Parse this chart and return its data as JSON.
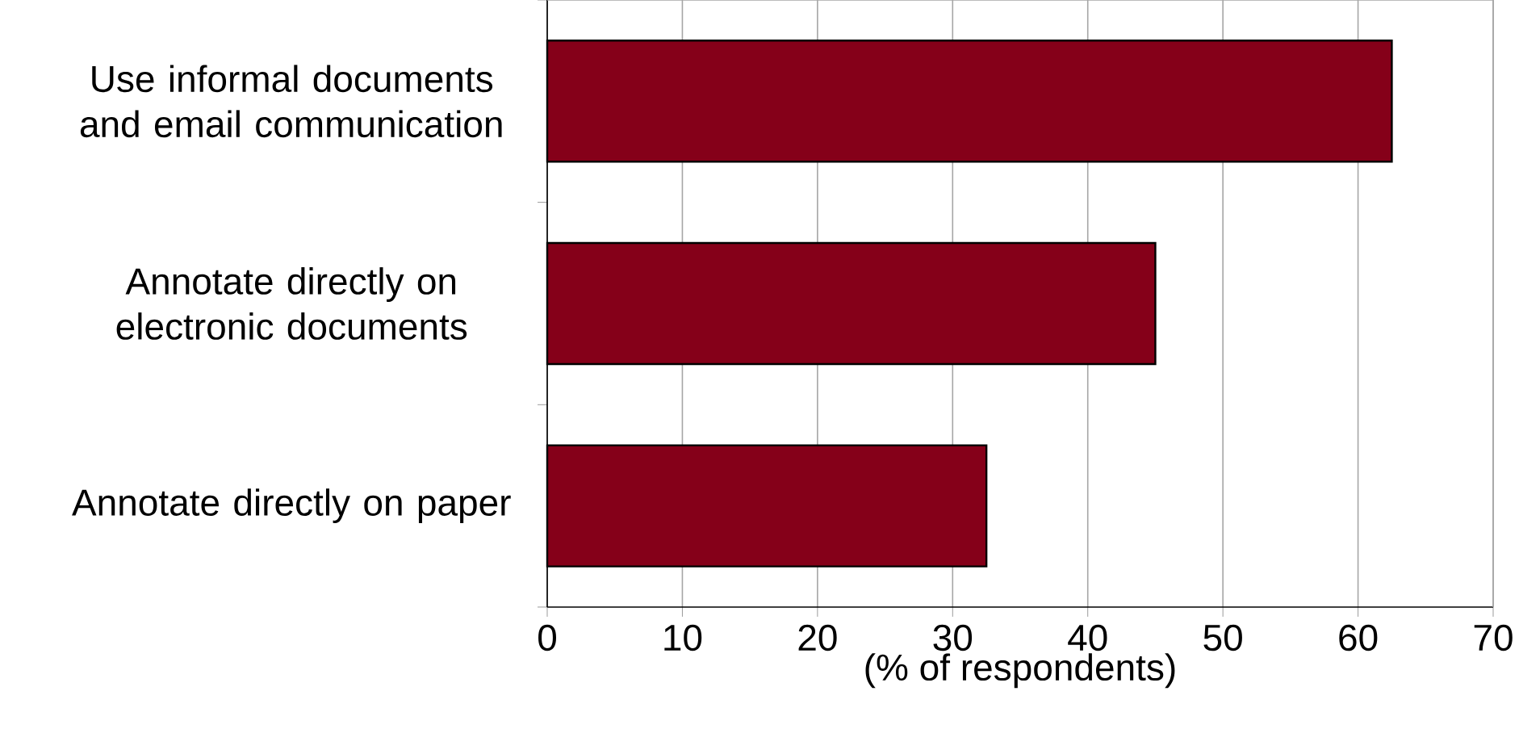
{
  "chart_data": {
    "type": "bar",
    "orientation": "horizontal",
    "xlabel": "(% of respondents)",
    "categories": [
      "Use informal documents and email communication",
      "Annotate directly on electronic documents",
      "Annotate directly on paper"
    ],
    "values": [
      62.5,
      45,
      32.5
    ],
    "color": "#850019",
    "xlim": [
      0,
      70
    ],
    "xticks": [
      0,
      10,
      20,
      30,
      40,
      50,
      60,
      70
    ],
    "grid": "x"
  }
}
